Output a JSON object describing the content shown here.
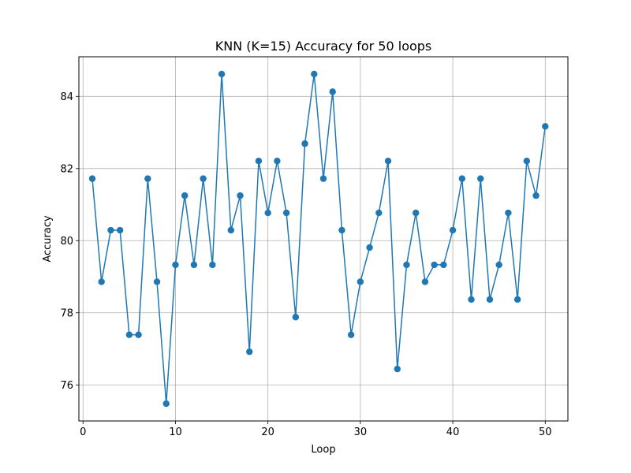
{
  "chart_data": {
    "type": "line",
    "title": "KNN (K=15) Accuracy for 50 loops",
    "xlabel": "Loop",
    "ylabel": "Accuracy",
    "xlim": [
      -0.45,
      52.45
    ],
    "ylim": [
      75.0,
      85.1
    ],
    "xticks": [
      0,
      10,
      20,
      30,
      40,
      50
    ],
    "yticks": [
      76,
      78,
      80,
      82,
      84
    ],
    "grid": true,
    "color": "#1f77b4",
    "marker": "circle",
    "x": [
      1,
      2,
      3,
      4,
      5,
      6,
      7,
      8,
      9,
      10,
      11,
      12,
      13,
      14,
      15,
      16,
      17,
      18,
      19,
      20,
      21,
      22,
      23,
      24,
      25,
      26,
      27,
      28,
      29,
      30,
      31,
      32,
      33,
      34,
      35,
      36,
      37,
      38,
      39,
      40,
      41,
      42,
      43,
      44,
      45,
      46,
      47,
      48,
      49,
      50
    ],
    "y": [
      81.72,
      78.86,
      80.29,
      80.29,
      77.39,
      77.39,
      81.72,
      78.86,
      75.48,
      79.33,
      81.25,
      79.33,
      81.72,
      79.33,
      84.62,
      80.29,
      81.25,
      76.92,
      82.21,
      80.77,
      82.21,
      80.77,
      77.88,
      82.69,
      84.62,
      81.72,
      84.13,
      80.29,
      77.39,
      78.86,
      79.81,
      80.77,
      82.21,
      76.44,
      79.33,
      80.77,
      78.86,
      79.33,
      79.33,
      80.29,
      81.72,
      78.37,
      81.72,
      78.37,
      79.33,
      80.77,
      78.37,
      82.21,
      81.25,
      83.17
    ]
  }
}
